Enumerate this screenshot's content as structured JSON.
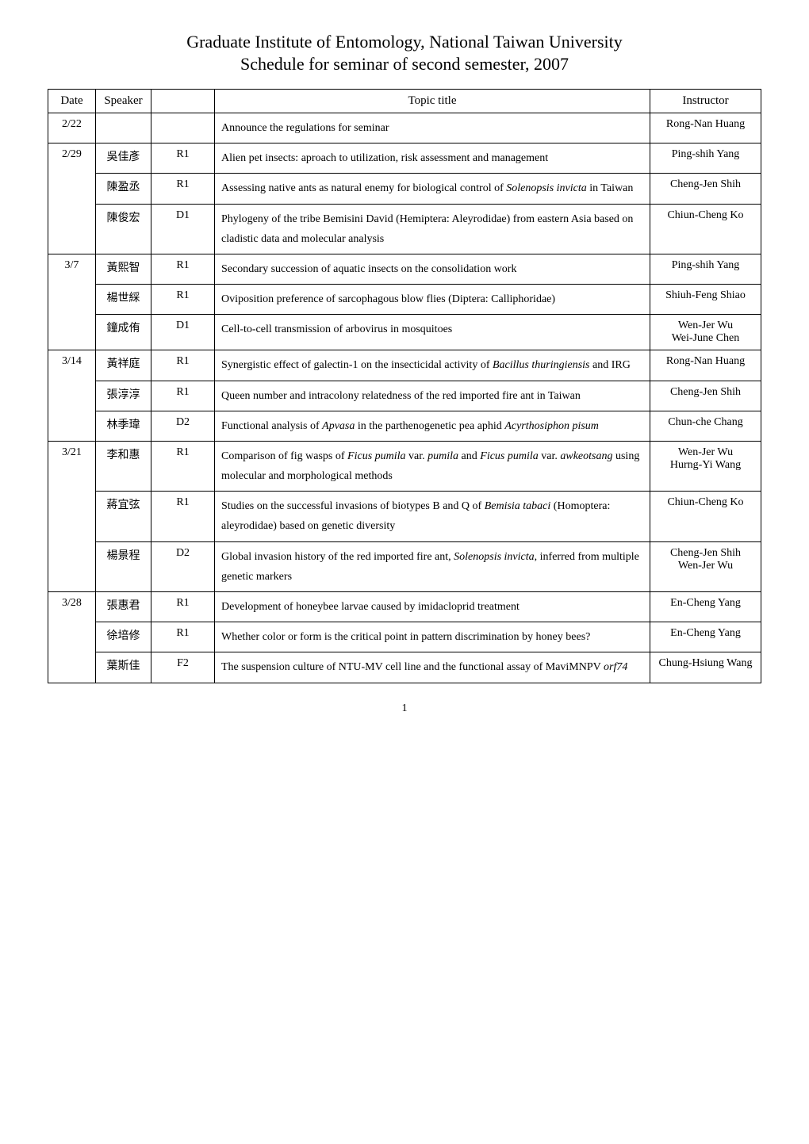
{
  "header": {
    "title": "Graduate Institute of Entomology, National Taiwan University",
    "subtitle": "Schedule for seminar of second semester, 2007"
  },
  "columns": {
    "date": "Date",
    "speaker": "Speaker",
    "level": "",
    "topic": "Topic title",
    "instructor": "Instructor"
  },
  "rows": [
    {
      "date": "2/22",
      "speaker": "",
      "level": "",
      "topic": "Announce the regulations for seminar",
      "instructor": "Rong-Nan Huang",
      "date_rowspan": 1
    },
    {
      "date": "2/29",
      "speaker": "吳佳彥",
      "level": "R1",
      "topic": "Alien pet insects: aproach to utilization, risk assessment and management",
      "instructor": "Ping-shih Yang",
      "date_rowspan": 3
    },
    {
      "speaker": "陳盈丞",
      "level": "R1",
      "topic": "Assessing native ants as natural enemy for biological control of <i>Solenopsis invicta</i> in Taiwan",
      "instructor": "Cheng-Jen Shih"
    },
    {
      "speaker": "陳俊宏",
      "level": "D1",
      "topic": "Phylogeny of the tribe Bemisini David (Hemiptera: Aleyrodidae) from eastern Asia based on cladistic data and molecular analysis",
      "instructor": "Chiun-Cheng Ko"
    },
    {
      "date": "3/7",
      "speaker": "黃熙智",
      "level": "R1",
      "topic": "Secondary succession of aquatic insects on the consolidation work",
      "instructor": "Ping-shih Yang",
      "date_rowspan": 3
    },
    {
      "speaker": "楊世綵",
      "level": "R1",
      "topic": "Oviposition preference of sarcophagous blow flies (Diptera: Calliphoridae)",
      "instructor": "Shiuh-Feng Shiao"
    },
    {
      "speaker": "鐘成侑",
      "level": "D1",
      "topic": "Cell-to-cell transmission of arbovirus in mosquitoes",
      "instructor": "Wen-Jer Wu\nWei-June Chen"
    },
    {
      "date": "3/14",
      "speaker": "黃祥庭",
      "level": "R1",
      "topic": "Synergistic effect of galectin-1 on the insecticidal activity of <i>Bacillus thuringiensis</i> and IRG",
      "instructor": "Rong-Nan Huang",
      "date_rowspan": 3
    },
    {
      "speaker": "張淳淳",
      "level": "R1",
      "topic": "Queen number and intracolony relatedness of the red imported fire ant in Taiwan",
      "instructor": "Cheng-Jen Shih"
    },
    {
      "speaker": "林季瑋",
      "level": "D2",
      "topic": "Functional analysis of <i>Apvasa</i> in the parthenogenetic pea aphid <i>Acyrthosiphon pisum</i>",
      "instructor": "Chun-che Chang"
    },
    {
      "date": "3/21",
      "speaker": "李和惠",
      "level": "R1",
      "topic": "Comparison of fig wasps of <i>Ficus pumila</i> var. <i>pumila</i> and <i>Ficus pumila</i> var. <i>awkeotsang</i> using molecular and morphological methods",
      "instructor": "Wen-Jer Wu\nHurng-Yi Wang",
      "date_rowspan": 3
    },
    {
      "speaker": "蔣宜弦",
      "level": "R1",
      "topic": "Studies on the successful invasions of biotypes B and Q of <i>Bemisia tabaci</i> (Homoptera: aleyrodidae) based on genetic diversity",
      "instructor": "Chiun-Cheng Ko"
    },
    {
      "speaker": "楊景程",
      "level": "D2",
      "topic": "Global invasion history of the red imported fire ant, <i>Solenopsis invicta</i>, inferred from multiple genetic markers",
      "instructor": "Cheng-Jen Shih\nWen-Jer Wu"
    },
    {
      "date": "3/28",
      "speaker": "張惠君",
      "level": "R1",
      "topic": "Development of honeybee larvae caused by imidacloprid treatment",
      "instructor": "En-Cheng Yang",
      "date_rowspan": 3
    },
    {
      "speaker": "徐培修",
      "level": "R1",
      "topic": "Whether color or form is the critical point in pattern discrimination by honey bees?",
      "instructor": "En-Cheng Yang"
    },
    {
      "speaker": "葉斯佳",
      "level": "F2",
      "topic": "The suspension culture of NTU-MV cell line and the functional assay of MaviMNPV <i>orf74</i>",
      "instructor": "Chung-Hsiung Wang"
    }
  ],
  "page_number": "1",
  "styling": {
    "background_color": "#ffffff",
    "border_color": "#000000",
    "text_color": "#000000",
    "title_fontsize": 22,
    "cell_fontsize": 14,
    "font_family": "Times New Roman"
  }
}
